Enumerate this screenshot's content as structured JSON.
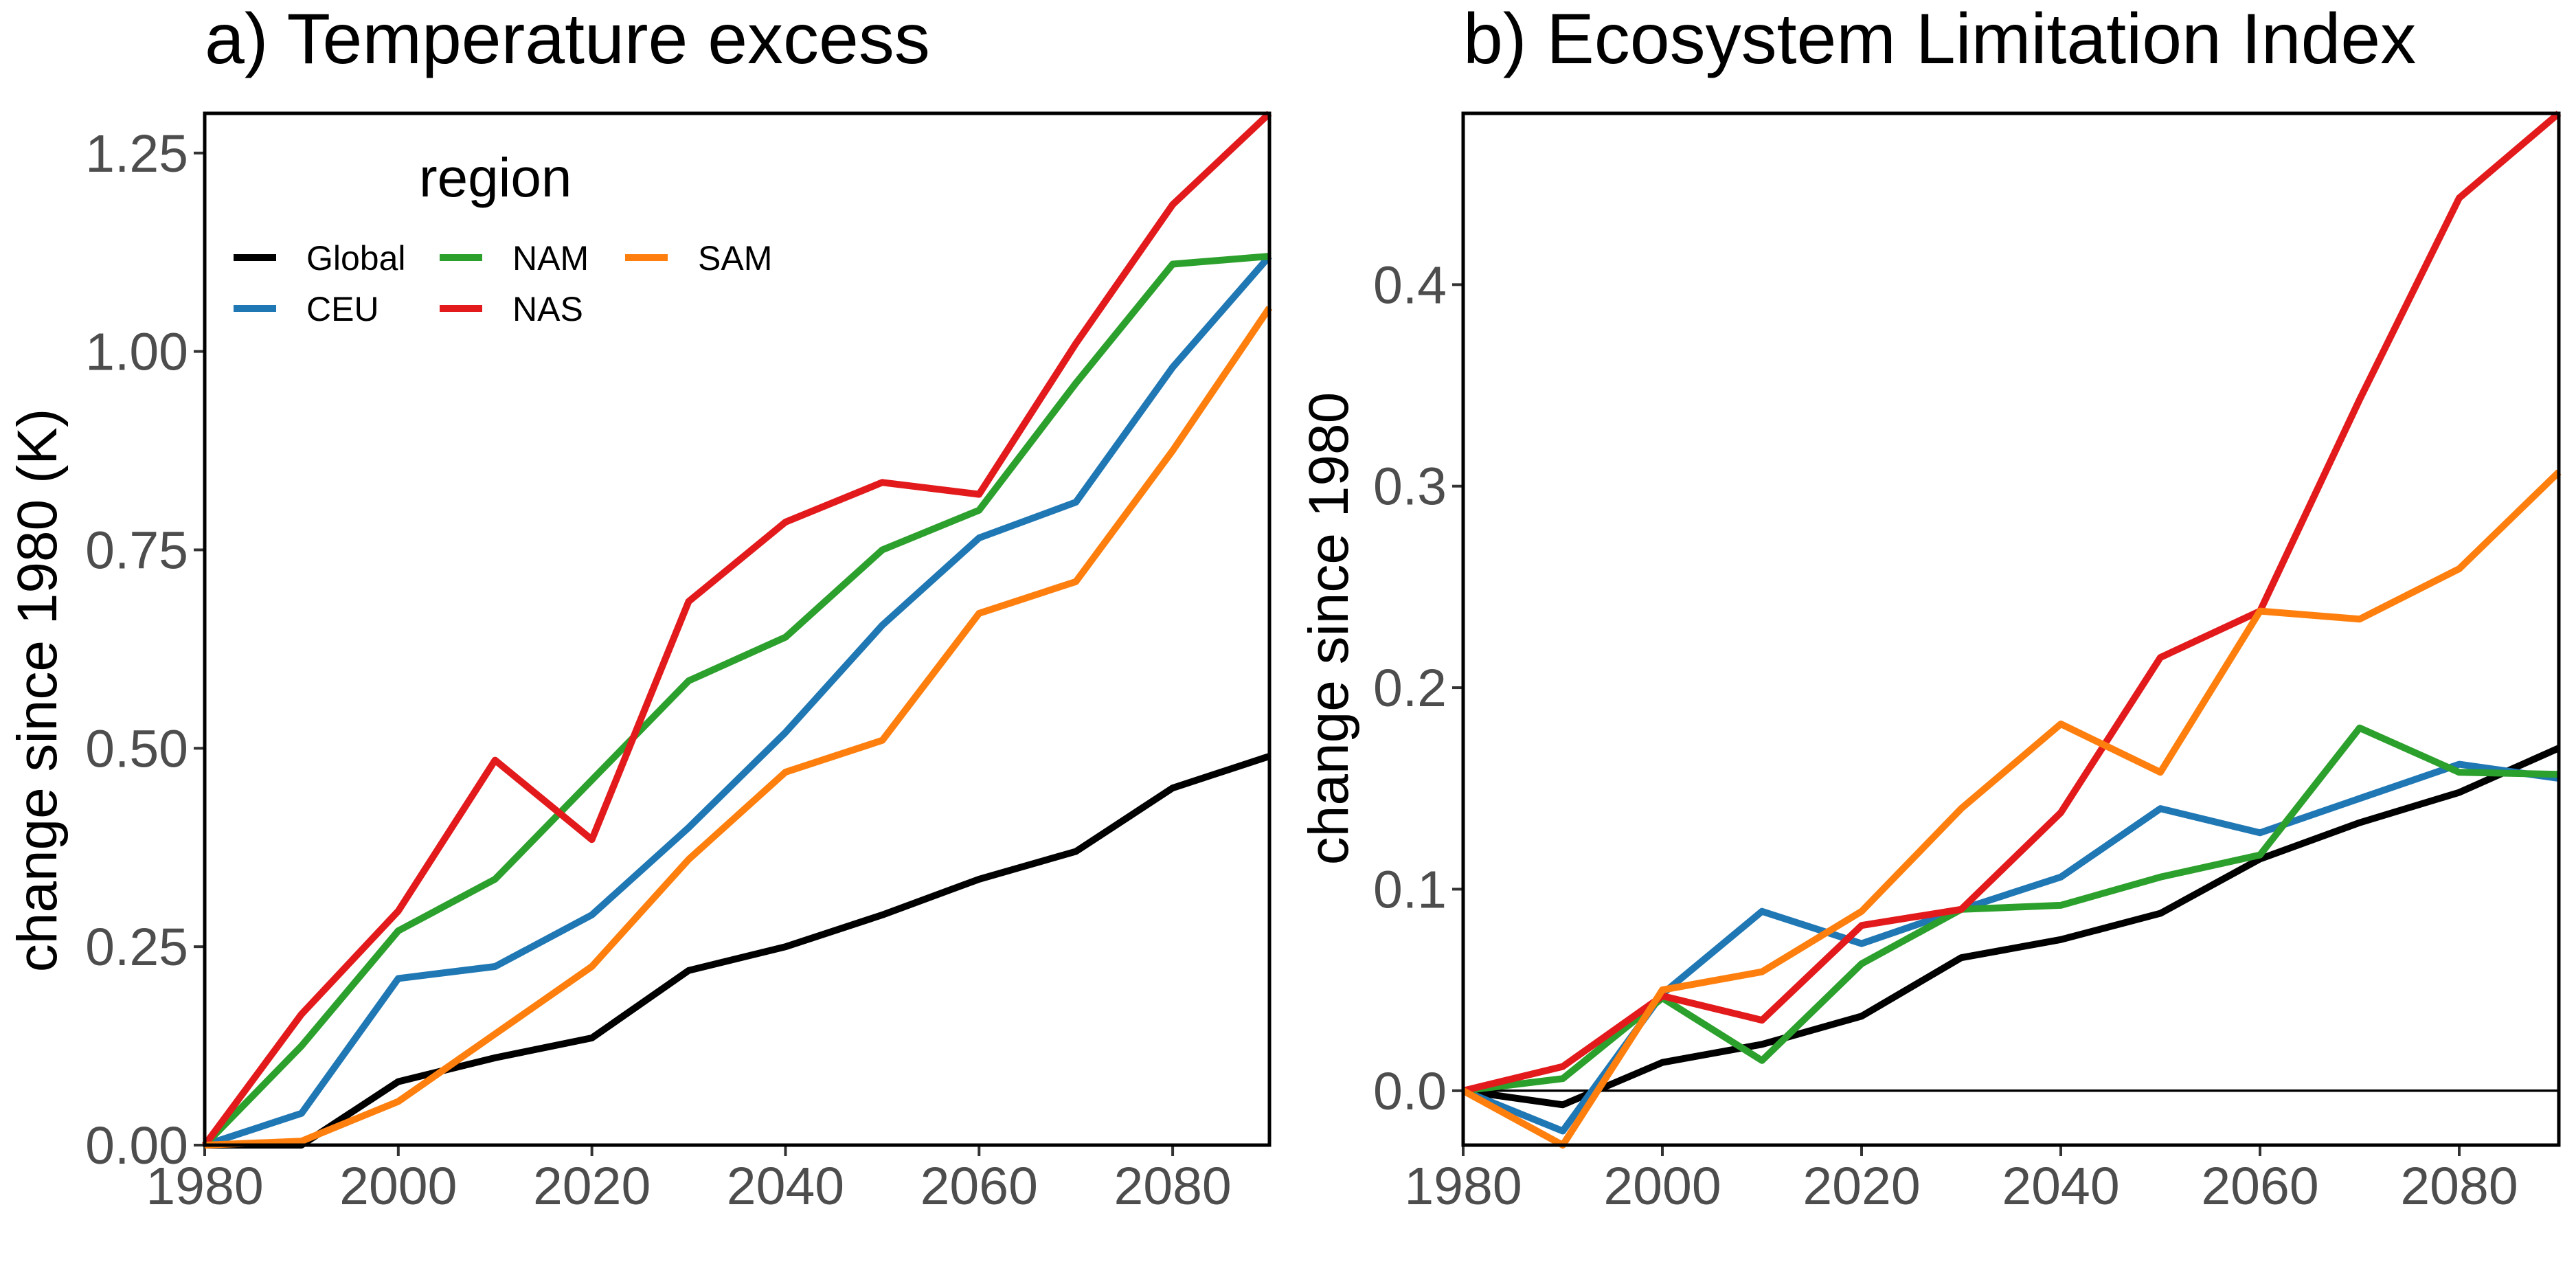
{
  "colors": {
    "Global": "#000000",
    "CEU": "#1f77b4",
    "NAM": "#2ca02c",
    "NAS": "#e31a1c",
    "SAM": "#ff7f0e"
  },
  "legend": {
    "title": "region",
    "entries": [
      "Global",
      "CEU",
      "NAM",
      "NAS",
      "SAM"
    ]
  },
  "chart_data": [
    {
      "type": "line",
      "title": "a) Temperature excess",
      "xlabel": "",
      "ylabel": "change since 1980 (K)",
      "xlim": [
        1980,
        2090
      ],
      "ylim": [
        0,
        1.3
      ],
      "x_ticks": [
        1980,
        2000,
        2020,
        2040,
        2060,
        2080
      ],
      "x_tick_labels": [
        "1980",
        "2000",
        "2020",
        "2040",
        "2060",
        "2080"
      ],
      "y_ticks": [
        0,
        0.25,
        0.5,
        0.75,
        1.0,
        1.25
      ],
      "y_tick_labels": [
        "0.00",
        "0.25",
        "0.50",
        "0.75",
        "1.00",
        "1.25"
      ],
      "zero_line": false,
      "legend_position": "top-left",
      "x": [
        1980,
        1990,
        2000,
        2010,
        2020,
        2030,
        2040,
        2050,
        2060,
        2070,
        2080,
        2090
      ],
      "series": [
        {
          "name": "Global",
          "values": [
            0.0,
            0.0,
            0.08,
            0.11,
            0.135,
            0.22,
            0.25,
            0.29,
            0.335,
            0.37,
            0.45,
            0.49
          ]
        },
        {
          "name": "CEU",
          "values": [
            0.0,
            0.04,
            0.21,
            0.225,
            0.29,
            0.4,
            0.52,
            0.655,
            0.765,
            0.81,
            0.98,
            1.12
          ]
        },
        {
          "name": "NAM",
          "values": [
            0.0,
            0.125,
            0.27,
            0.335,
            0.46,
            0.585,
            0.64,
            0.75,
            0.8,
            0.96,
            1.11,
            1.12
          ]
        },
        {
          "name": "NAS",
          "values": [
            0.0,
            0.165,
            0.295,
            0.485,
            0.385,
            0.685,
            0.785,
            0.835,
            0.82,
            1.01,
            1.185,
            1.3
          ]
        },
        {
          "name": "SAM",
          "values": [
            0.0,
            0.005,
            0.055,
            0.14,
            0.225,
            0.36,
            0.47,
            0.51,
            0.67,
            0.71,
            0.875,
            1.055
          ]
        }
      ]
    },
    {
      "type": "line",
      "title": "b) Ecosystem Limitation Index",
      "xlabel": "",
      "ylabel": "change since 1980",
      "xlim": [
        1980,
        2090
      ],
      "ylim": [
        -0.027,
        0.485
      ],
      "x_ticks": [
        1980,
        2000,
        2020,
        2040,
        2060,
        2080
      ],
      "x_tick_labels": [
        "1980",
        "2000",
        "2020",
        "2040",
        "2060",
        "2080"
      ],
      "y_ticks": [
        0,
        0.1,
        0.2,
        0.3,
        0.4
      ],
      "y_tick_labels": [
        "0.0",
        "0.1",
        "0.2",
        "0.3",
        "0.4"
      ],
      "zero_line": true,
      "x": [
        1980,
        1990,
        2000,
        2010,
        2020,
        2030,
        2040,
        2050,
        2060,
        2070,
        2080,
        2090
      ],
      "series": [
        {
          "name": "Global",
          "values": [
            0.0,
            -0.007,
            0.014,
            0.023,
            0.037,
            0.066,
            0.075,
            0.088,
            0.115,
            0.133,
            0.148,
            0.17
          ]
        },
        {
          "name": "CEU",
          "values": [
            0.0,
            -0.02,
            0.048,
            0.089,
            0.073,
            0.09,
            0.106,
            0.14,
            0.128,
            0.145,
            0.162,
            0.155
          ]
        },
        {
          "name": "NAM",
          "values": [
            0.0,
            0.006,
            0.046,
            0.015,
            0.063,
            0.09,
            0.092,
            0.106,
            0.117,
            0.18,
            0.158,
            0.157
          ]
        },
        {
          "name": "NAS",
          "values": [
            0.0,
            0.012,
            0.047,
            0.035,
            0.082,
            0.09,
            0.138,
            0.215,
            0.238,
            0.343,
            0.443,
            0.485
          ]
        },
        {
          "name": "SAM",
          "values": [
            0.0,
            -0.027,
            0.05,
            0.059,
            0.089,
            0.14,
            0.182,
            0.158,
            0.238,
            0.234,
            0.259,
            0.307
          ]
        }
      ]
    }
  ]
}
